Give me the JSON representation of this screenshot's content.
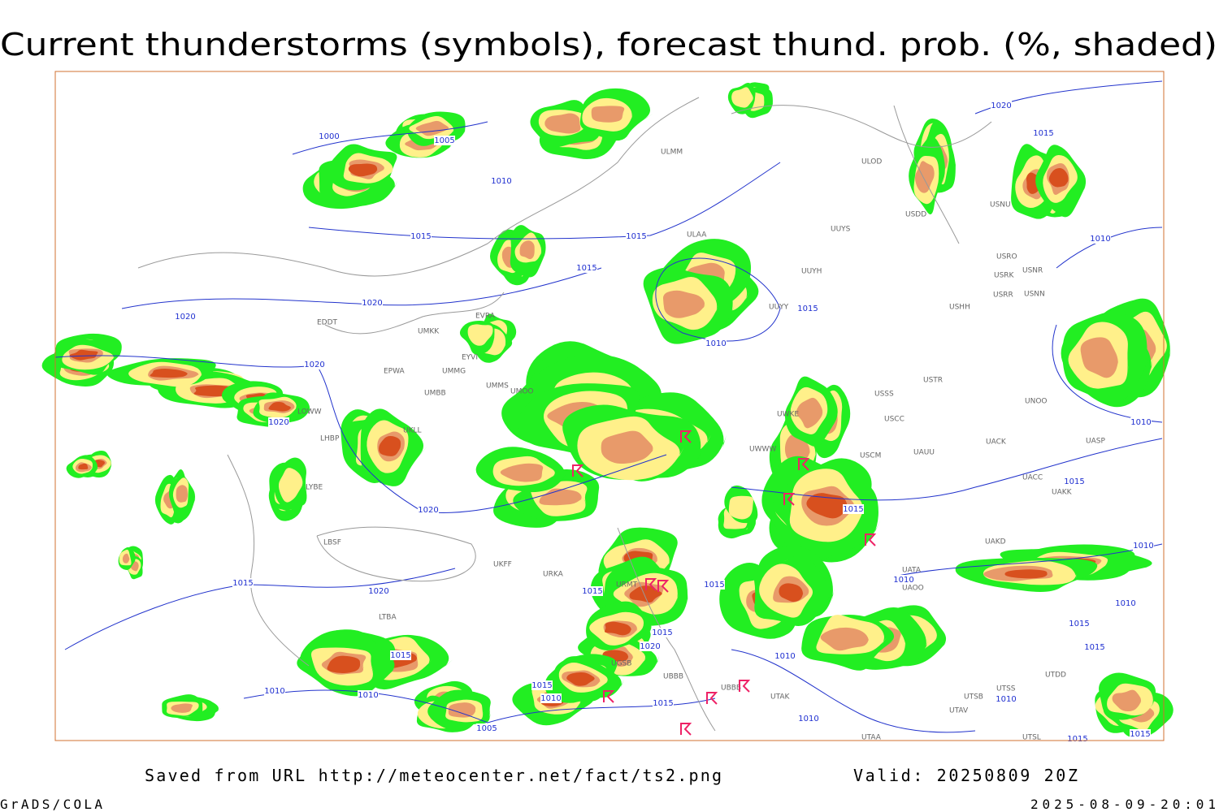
{
  "title": "Current thunderstorms (symbols), forecast thund. prob. (%, shaded)",
  "footer": {
    "source": "Saved from URL http://meteocenter.net/fact/ts2.png",
    "valid": "Valid: 20250809 20Z",
    "credit": "GrADS/COLA",
    "timestamp": "2025-08-09-20:01"
  },
  "isobar_labels": [
    "1000",
    "1005",
    "1010",
    "1015",
    "1015",
    "1015",
    "1020",
    "1020",
    "1020",
    "1020",
    "1020",
    "1015",
    "1020",
    "1015",
    "1015",
    "1020",
    "1015",
    "1010",
    "1010",
    "1015",
    "1010",
    "1015",
    "1005",
    "1010",
    "1015",
    "1015",
    "1015",
    "1010",
    "1010",
    "1010",
    "1020",
    "1015",
    "1010",
    "1010",
    "1015",
    "1010",
    "1010",
    "1015",
    "1015",
    "1010",
    "1015",
    "1015"
  ],
  "station_labels": [
    "ULMM",
    "ULOD",
    "USDD",
    "USNU",
    "UUYS",
    "ULAA",
    "UUYH",
    "USRO",
    "USRK",
    "USNR",
    "USRR",
    "USNN",
    "UUYY",
    "USHH",
    "EVRA",
    "EDDT",
    "UMKK",
    "EYVI",
    "EPWA",
    "UMMG",
    "UMBB",
    "LOWW",
    "LHBP",
    "UKLL",
    "LYBE",
    "LBSF",
    "LTBA",
    "UKFF",
    "UMMS",
    "UMOO",
    "URKA",
    "URMT",
    "UGSB",
    "UBBB",
    "UBBB",
    "UTAK",
    "USSS",
    "USTR",
    "USCC",
    "UAUU",
    "USCM",
    "UACK",
    "UNOO",
    "UASP",
    "UACC",
    "UAKK",
    "UAKD",
    "UATA",
    "UAOO",
    "UTSB",
    "UTAV",
    "UTAA",
    "UTDD",
    "UTSS",
    "UTSL",
    "UWWW",
    "UWKE"
  ]
}
